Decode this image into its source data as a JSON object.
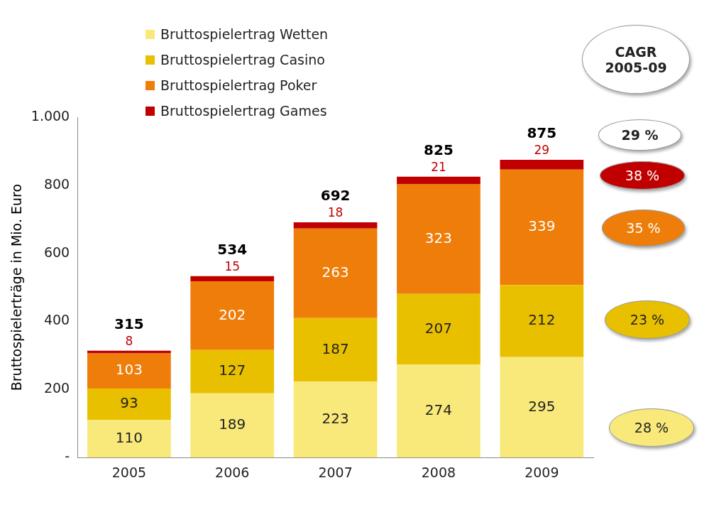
{
  "chart_data": {
    "type": "bar",
    "stacked": true,
    "ylabel": "Bruttospielerträge in Mio. Euro",
    "categories": [
      "2005",
      "2006",
      "2007",
      "2008",
      "2009"
    ],
    "series": [
      {
        "name": "Bruttospielertrag Wetten",
        "color": "#f9e97a",
        "values": [
          110,
          189,
          223,
          274,
          295
        ]
      },
      {
        "name": "Bruttospielertrag Casino",
        "color": "#e8c000",
        "values": [
          93,
          127,
          187,
          207,
          212
        ]
      },
      {
        "name": "Bruttospielertrag Poker",
        "color": "#ee7d0a",
        "values": [
          103,
          202,
          263,
          323,
          339
        ]
      },
      {
        "name": "Bruttospielertrag Games",
        "color": "#c00000",
        "values": [
          8,
          15,
          18,
          21,
          29
        ]
      }
    ],
    "totals": [
      "315",
      "534",
      "692",
      "825",
      "875"
    ],
    "ylim": [
      0,
      1000
    ],
    "yticks": [
      {
        "value": 0,
        "label": "-"
      },
      200,
      400,
      600,
      800,
      {
        "value": 1000,
        "label": "1.000"
      }
    ],
    "data_labels": true,
    "grid": false,
    "legend": "top left",
    "annotations": [
      "CAGR 2005-09",
      "29 %",
      "38 %",
      "35 %",
      "23 %",
      "28 %"
    ]
  }
}
